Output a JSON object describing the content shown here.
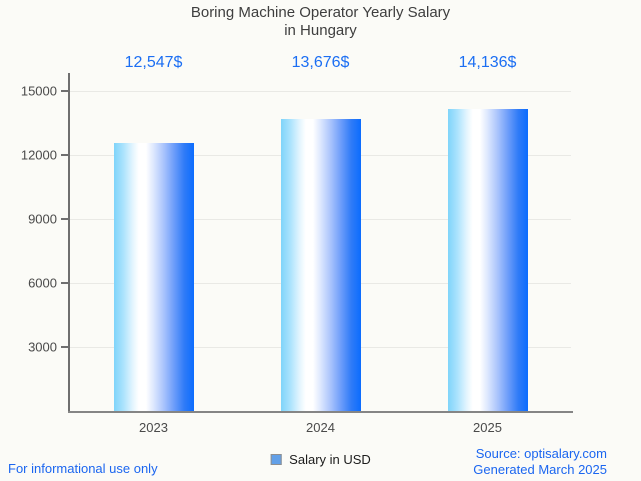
{
  "page": {
    "background": "#fbfbf7"
  },
  "chart_data": {
    "type": "bar",
    "title": "Boring Machine Operator Yearly Salary in Hungary",
    "title_lines": [
      "Boring Machine Operator Yearly Salary",
      "in Hungary"
    ],
    "categories": [
      "2023",
      "2024",
      "2025"
    ],
    "series": [
      {
        "name": "Salary in USD",
        "values": [
          12547,
          13676,
          14136
        ]
      }
    ],
    "values": [
      12547,
      13676,
      14136
    ],
    "value_labels": [
      "12,547$",
      "13,676$",
      "14,136$"
    ],
    "y_ticks": [
      3000,
      6000,
      9000,
      12000,
      15000
    ],
    "ylim": [
      0,
      15750
    ],
    "xlabel": "",
    "ylabel": "",
    "grid": "horizontal",
    "legend_position": "bottom-center",
    "colors": {
      "bar_gradient": [
        "#7fd4fa",
        "#ffffff",
        "#0b6cfe"
      ],
      "value_label": "#1b6ef3",
      "axis": "#6f6f6f",
      "gridline": "#e9e9e5",
      "tick_label": "#4a4a4a"
    }
  },
  "legend": {
    "label": "Salary in USD",
    "marker_color": "#62a0e8"
  },
  "footer": {
    "disclaimer": "For informational use only",
    "source": "Source: optisalary.com",
    "generated": "Generated March 2025",
    "link_color": "#1b66f0"
  }
}
